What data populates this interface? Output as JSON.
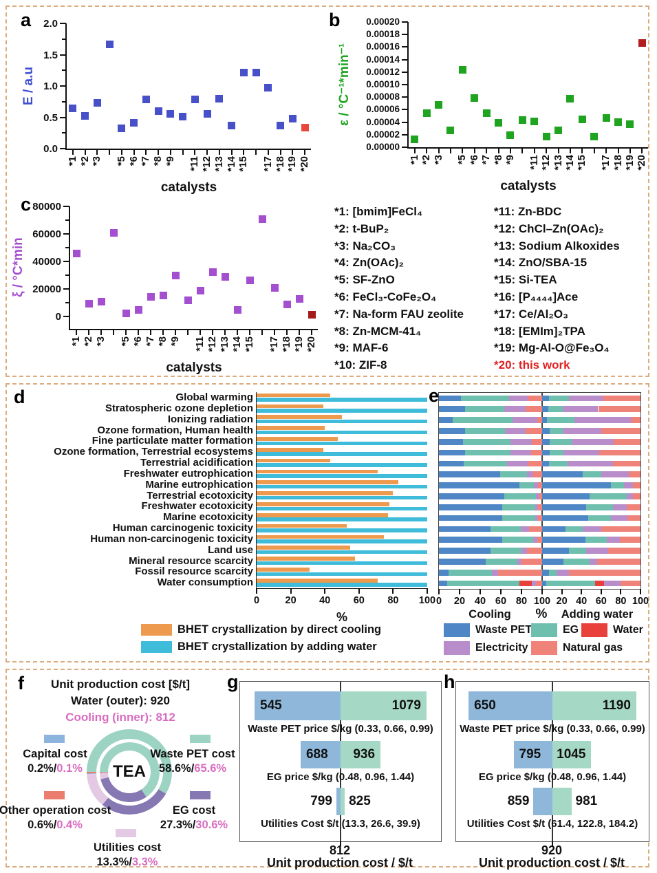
{
  "panels": {
    "a": "a",
    "b": "b",
    "c": "c",
    "d": "d",
    "e": "e",
    "f": "f",
    "g": "g",
    "h": "h"
  },
  "colors": {
    "frame_border": "#dcab7e",
    "a_marker": "#4750c8",
    "a_highlight": "#e8473c",
    "a_label": "#3f4fd0",
    "b_marker": "#1ea41e",
    "b_highlight": "#b01e1e",
    "b_label": "#1ea41e",
    "c_marker": "#a44fd0",
    "c_highlight": "#a51a1a",
    "c_label": "#a44fd0",
    "d_cooling": "#ed9a4e",
    "d_water": "#3fbcd9",
    "e_waste_pet": "#4e86c6",
    "e_eg": "#6fbfaf",
    "e_water": "#e8403a",
    "e_electricity": "#b88dc9",
    "e_natural_gas": "#ef8379",
    "f_teal": "#9cd3c3",
    "f_purple": "#8678b2",
    "f_pink_slice": "#e4c9e4",
    "f_blue": "#8db4dc",
    "f_salmon": "#eb7d6f",
    "f_pink_text": "#d96cc0",
    "t_low": "#8fb7da",
    "t_high": "#a5d9c5",
    "catalyst_highlight": "#e02020"
  },
  "catalysts": {
    "col1": [
      "*1: [bmim]FeCl₄",
      "*2: t-BuP₂",
      "*3: Na₂CO₃",
      "*4: Zn(OAc)₂",
      "*5: SF-ZnO",
      "*6: FeCl₃-CoFe₂O₄",
      "*7: Na-form FAU zeolite",
      "*8: Zn-MCM-41₄",
      "*9: MAF-6",
      "*10: ZIF-8"
    ],
    "col2": [
      "*11: Zn-BDC",
      "*12: ChCl–Zn(OAc)₂",
      "*13: Sodium Alkoxides",
      "*14: ZnO/SBA-15",
      "*15: Si-TEA",
      "*16: [P₄₄₄₄]Ace",
      "*17: Ce/Al₂O₃",
      "*18: [EMIm]₂TPA",
      "*19: Mg-Al-O@Fe₃O₄",
      "*20: this work"
    ],
    "highlight_item": "*20: this work"
  },
  "chart_data": [
    {
      "id": "a",
      "type": "scatter",
      "title": "",
      "xlabel": "catalysts",
      "ylabel": "E / a.u",
      "ylim": [
        0,
        2
      ],
      "ytick_values": [
        0,
        0.5,
        1,
        1.5,
        2
      ],
      "ytick_labels": [
        "0.0",
        "0.5",
        "1.0",
        "1.5",
        "2.0"
      ],
      "ytick_minor": [
        0.25,
        0.75,
        1.25,
        1.75
      ],
      "ytick_font": 15,
      "ylabel_offset": 44,
      "xticklabels": [
        "*1",
        "*2",
        "*3",
        null,
        "*5",
        "*6",
        "*7",
        "*8",
        "*9",
        null,
        "*11",
        "*12",
        "*13",
        "*14",
        "*15",
        null,
        "*17",
        "*18",
        "*19",
        "*20"
      ],
      "values": [
        0.64,
        0.52,
        0.73,
        1.66,
        0.32,
        0.41,
        0.79,
        0.6,
        0.56,
        0.51,
        0.79,
        0.56,
        0.8,
        0.37,
        1.21,
        1.21,
        0.97,
        0.37,
        0.48,
        0.33
      ],
      "highlight_index": 19
    },
    {
      "id": "b",
      "type": "scatter",
      "title": "",
      "xlabel": "catalysts",
      "ylabel": "ε / °C⁻¹*min⁻¹",
      "ylim": [
        0,
        0.0002
      ],
      "ytick_values": [
        0,
        2e-05,
        4e-05,
        6e-05,
        8e-05,
        0.0001,
        0.00012,
        0.00014,
        0.00016,
        0.00018,
        0.0002
      ],
      "ytick_labels": [
        "0.00000",
        "0.00002",
        "0.00004",
        "0.00006",
        "0.00008",
        "0.00010",
        "0.00012",
        "0.00014",
        "0.00016",
        "0.00018",
        "0.00020"
      ],
      "ytick_minor": [],
      "ytick_font": 13.5,
      "ylabel_offset": 82,
      "xticklabels": [
        "*1",
        "*2",
        "*3",
        null,
        "*5",
        "*6",
        "*7",
        "*8",
        "*9",
        null,
        "*11",
        "*12",
        "*13",
        "*14",
        "*15",
        null,
        "*17",
        "*18",
        "*19",
        "*20"
      ],
      "values": [
        1.3e-05,
        5.4e-05,
        6.8e-05,
        2.7e-05,
        0.000124,
        7.9e-05,
        5.4e-05,
        3.9e-05,
        1.9e-05,
        4.3e-05,
        4.1e-05,
        1.7e-05,
        2.7e-05,
        7.7e-05,
        4.5e-05,
        1.7e-05,
        4.7e-05,
        4e-05,
        3.7e-05,
        0.000167
      ],
      "highlight_index": 19
    },
    {
      "id": "c",
      "type": "scatter",
      "title": "",
      "xlabel": "catalysts",
      "ylabel": "ξ / °C*min",
      "ylim": [
        -9000,
        80000
      ],
      "ytick_values": [
        0,
        20000,
        40000,
        60000,
        80000
      ],
      "ytick_labels": [
        "0",
        "20000",
        "40000",
        "60000",
        "80000"
      ],
      "ytick_minor": [
        10000,
        30000,
        50000,
        70000
      ],
      "ytick_font": 15,
      "ylabel_offset": 64,
      "xticklabels": [
        "*1",
        "*2",
        "*3",
        null,
        "*5",
        "*6",
        "*7",
        "*8",
        "*9",
        null,
        "*11",
        "*12",
        "*13",
        "*14",
        "*15",
        null,
        "*17",
        "*18",
        "*19",
        "*20"
      ],
      "values": [
        46000,
        9500,
        11000,
        61000,
        2500,
        5000,
        14500,
        15500,
        30000,
        12000,
        19000,
        32500,
        29000,
        5000,
        26500,
        71000,
        21000,
        9000,
        13000,
        1500
      ],
      "highlight_index": 19
    },
    {
      "id": "d",
      "type": "bar",
      "categories": [
        "Global warming",
        "Stratospheric ozone depletion",
        "Ionizing radiation",
        "Ozone formation, Human health",
        "Fine particulate matter formation",
        "Ozone formation, Terrestrial ecosystems",
        "Terrestrial acidification",
        "Freshwater eutrophication",
        "Marine eutrophication",
        "Terrestrial ecotoxicity",
        "Freshwater ecotoxicity",
        "Marine ecotoxicity",
        "Human carcinogenic toxicity",
        "Human non-carcinogenic toxicity",
        "Land use",
        "Mineral resource scarcity",
        "Fossil resource scarcity",
        "Water consumption"
      ],
      "series": [
        {
          "name": "BHET crystallization by direct cooling",
          "color_key": "d_cooling",
          "values": [
            43,
            39,
            50,
            40,
            47.5,
            39,
            43,
            71,
            83,
            80,
            78,
            77,
            53,
            74.5,
            55,
            57.5,
            31,
            71
          ]
        },
        {
          "name": "BHET crystallization by adding water",
          "color_key": "d_water",
          "values": [
            100,
            100,
            100,
            100,
            100,
            100,
            100,
            100,
            100,
            100,
            100,
            100,
            100,
            100,
            100,
            100,
            100,
            100
          ]
        }
      ],
      "xticks": [
        0,
        20,
        40,
        60,
        80,
        100
      ],
      "xlabel": "%",
      "xlim": [
        0,
        100
      ]
    },
    {
      "id": "e",
      "type": "stacked-bar",
      "group_labels": {
        "left": "Cooling",
        "mid": "%",
        "right": "Adding water"
      },
      "segment_order": [
        "Waste PET",
        "EG",
        "Water",
        "Electricity",
        "Natural gas"
      ],
      "segment_color_keys": [
        "e_waste_pet",
        "e_eg",
        "e_water",
        "e_electricity",
        "e_natural_gas"
      ],
      "left_xticks": [
        0,
        20,
        40,
        60,
        80,
        100
      ],
      "right_xticks": [
        20,
        40,
        60,
        80,
        100
      ],
      "cooling": [
        [
          21,
          47,
          0,
          18,
          14
        ],
        [
          25,
          38,
          0,
          21,
          16
        ],
        [
          13,
          58,
          0,
          24,
          5
        ],
        [
          25,
          39,
          0,
          20,
          16
        ],
        [
          23,
          46,
          0,
          21,
          10
        ],
        [
          25,
          44,
          0,
          20,
          11
        ],
        [
          24,
          42,
          0,
          20,
          14
        ],
        [
          59,
          26,
          0,
          6,
          9
        ],
        [
          78,
          14,
          0,
          4,
          4
        ],
        [
          63,
          31,
          0,
          3,
          3
        ],
        [
          61,
          32,
          0,
          3,
          4
        ],
        [
          61,
          32,
          0,
          3,
          4
        ],
        [
          50,
          29,
          0,
          8,
          13
        ],
        [
          61,
          30,
          0,
          4,
          5
        ],
        [
          50,
          30,
          0,
          5,
          15
        ],
        [
          45,
          31,
          0,
          4,
          20
        ],
        [
          9,
          42,
          0,
          6,
          43
        ],
        [
          8,
          70,
          12,
          4,
          6
        ]
      ],
      "adding_water": [
        [
          7,
          20,
          0,
          35,
          38
        ],
        [
          6,
          15,
          0,
          36,
          43
        ],
        [
          5,
          28,
          0,
          57,
          10
        ],
        [
          8,
          13,
          0,
          39,
          40
        ],
        [
          8,
          22,
          0,
          43,
          27
        ],
        [
          8,
          14,
          0,
          36,
          42
        ],
        [
          7,
          19,
          0,
          46,
          28
        ],
        [
          41,
          19,
          0,
          28,
          12
        ],
        [
          70,
          13,
          0,
          9,
          8
        ],
        [
          48,
          38,
          0,
          6,
          8
        ],
        [
          45,
          27,
          0,
          14,
          14
        ],
        [
          47,
          23,
          0,
          17,
          13
        ],
        [
          24,
          17,
          0,
          19,
          40
        ],
        [
          44,
          22,
          0,
          13,
          21
        ],
        [
          27,
          18,
          0,
          22,
          33
        ],
        [
          22,
          26,
          0,
          8,
          44
        ],
        [
          7,
          8,
          0,
          12,
          73
        ],
        [
          4,
          50,
          9,
          17,
          20
        ]
      ],
      "legend_row1": [
        "Waste PET",
        "EG",
        "Water"
      ],
      "legend_row2": [
        "Electricity",
        "Natural gas"
      ]
    },
    {
      "id": "f",
      "type": "pie",
      "title_line1": "Unit production cost [$/t]",
      "title_line2": "Water (outer): 920",
      "title_line3": "Cooling (inner): 812",
      "center_label": "TEA",
      "slices": [
        {
          "label": "Waste PET cost",
          "water_pct": "58.6%",
          "cooling_pct": "65.6%",
          "water_val": 58.6,
          "cooling_val": 65.6,
          "color_key": "f_teal"
        },
        {
          "label": "EG cost",
          "water_pct": "27.3%",
          "cooling_pct": "30.6%",
          "water_val": 27.3,
          "cooling_val": 30.6,
          "color_key": "f_purple"
        },
        {
          "label": "Utilities cost",
          "water_pct": "13.3%",
          "cooling_pct": "3.3%",
          "water_val": 13.3,
          "cooling_val": 3.3,
          "color_key": "f_pink_slice"
        },
        {
          "label": "Capital cost",
          "water_pct": "0.2%",
          "cooling_pct": "0.1%",
          "water_val": 0.2,
          "cooling_val": 0.1,
          "color_key": "f_blue"
        },
        {
          "label": "Other operation cost",
          "water_pct": "0.6%",
          "cooling_pct": "0.4%",
          "water_val": 0.6,
          "cooling_val": 0.4,
          "color_key": "f_salmon"
        }
      ]
    },
    {
      "id": "g",
      "type": "tornado",
      "xmin": 500,
      "xmax": 1124,
      "base": 812,
      "base_label": "812",
      "xlabel": "Unit production cost / $/t",
      "rows": [
        {
          "low": 545,
          "high": 1079,
          "low_label": "545",
          "high_label": "1079",
          "param": "Waste PET price $/kg (0.33, 0.66, 0.99)",
          "inside": true
        },
        {
          "low": 688,
          "high": 936,
          "low_label": "688",
          "high_label": "936",
          "param": "EG  price  $/kg (0.48, 0.96, 1.44)",
          "inside": true
        },
        {
          "low": 799,
          "high": 825,
          "low_label": "799",
          "high_label": "825",
          "param": "Utilities Cost $/t (13.3, 26.6, 39.9)",
          "inside": false
        }
      ]
    },
    {
      "id": "h",
      "type": "tornado",
      "xmin": 610,
      "xmax": 1230,
      "base": 920,
      "base_label": "920",
      "xlabel": "Unit production cost / $/t",
      "rows": [
        {
          "low": 650,
          "high": 1190,
          "low_label": "650",
          "high_label": "1190",
          "param": "Waste PET price $/kg (0.33, 0.66, 0.99)",
          "inside": true
        },
        {
          "low": 795,
          "high": 1045,
          "low_label": "795",
          "high_label": "1045",
          "param": "EG  price  $/kg (0.48, 0.96, 1.44)",
          "inside": true
        },
        {
          "low": 859,
          "high": 981,
          "low_label": "859",
          "high_label": "981",
          "param": "Utilities Cost $/t (61.4, 122.8, 184.2)",
          "inside": false
        }
      ]
    }
  ]
}
